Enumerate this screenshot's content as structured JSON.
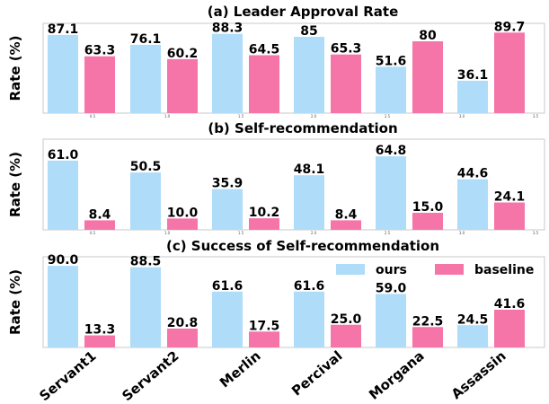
{
  "chart_data": {
    "type": "bar",
    "categories": [
      "Servant1",
      "Servant2",
      "Merlin",
      "Percival",
      "Morgana",
      "Assassin"
    ],
    "legend": {
      "placement": "top-right",
      "labels": [
        "ours",
        "baseline"
      ]
    },
    "colors": {
      "ours": "#aedcf9",
      "baseline": "#f675a8"
    },
    "panels": [
      {
        "title": "(a) Leader Approval Rate",
        "ylabel": "Rate (%)",
        "ylim": [
          0,
          100
        ],
        "tick_labels": [
          "0.5",
          "1.0",
          "1.5",
          "2.0",
          "2.5",
          "3.0",
          "3.5"
        ],
        "series": [
          {
            "values": [
              87.1,
              76.1,
              88.3,
              85,
              51.6,
              36.1
            ],
            "labels": [
              "87.1",
              "76.1",
              "88.3",
              "85",
              "51.6",
              "36.1"
            ]
          },
          {
            "values": [
              63.3,
              60.2,
              64.5,
              65.3,
              80,
              89.7
            ],
            "labels": [
              "63.3",
              "60.2",
              "64.5",
              "65.3",
              "80",
              "89.7"
            ]
          }
        ]
      },
      {
        "title": "(b) Self-recommendation",
        "ylabel": "Rate (%)",
        "ylim": [
          0,
          72
        ],
        "tick_labels": [
          "0.5",
          "1.0",
          "1.5",
          "2.0",
          "2.5",
          "3.0",
          "3.5"
        ],
        "series": [
          {
            "values": [
              61.0,
              50.5,
              35.9,
              48.1,
              64.8,
              44.6
            ],
            "labels": [
              "61.0",
              "50.5",
              "35.9",
              "48.1",
              "64.8",
              "44.6"
            ]
          },
          {
            "values": [
              8.4,
              10.0,
              10.2,
              8.4,
              15.0,
              24.1
            ],
            "labels": [
              "8.4",
              "10.0",
              "10.2",
              "8.4",
              "15.0",
              "24.1"
            ]
          }
        ]
      },
      {
        "title": "(c) Success of Self-recommendation",
        "ylabel": "Rate (%)",
        "ylim": [
          0,
          100
        ],
        "tick_labels": [],
        "series": [
          {
            "values": [
              90.0,
              88.5,
              61.6,
              61.6,
              59.0,
              24.5
            ],
            "labels": [
              "90.0",
              "88.5",
              "61.6",
              "61.6",
              "59.0",
              "24.5"
            ]
          },
          {
            "values": [
              13.3,
              20.8,
              17.5,
              25.0,
              22.5,
              41.6
            ],
            "labels": [
              "13.3",
              "20.8",
              "17.5",
              "25.0",
              "22.5",
              "41.6"
            ]
          }
        ]
      }
    ]
  }
}
